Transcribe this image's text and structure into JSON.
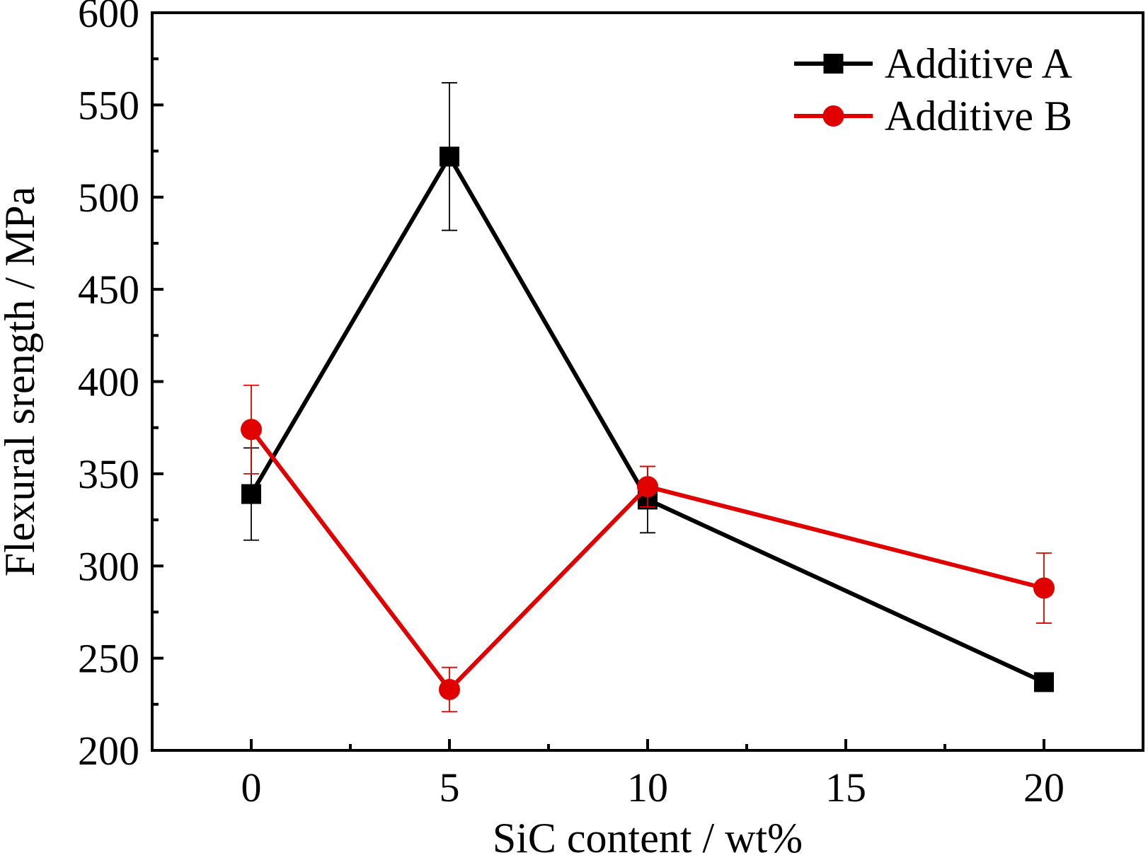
{
  "chart_data": {
    "type": "line",
    "title": "",
    "xlabel": "SiC content / wt%",
    "ylabel": "Flexural srength / MPa",
    "xlim": [
      -2.5,
      22.5
    ],
    "ylim": [
      200,
      600
    ],
    "xticks": [
      0,
      5,
      10,
      15,
      20
    ],
    "yticks": [
      200,
      250,
      300,
      350,
      400,
      450,
      500,
      550,
      600
    ],
    "grid": false,
    "legend": "top-right",
    "series": [
      {
        "name": "Additive A",
        "color": "#000000",
        "marker": "square",
        "x": [
          0,
          5,
          10,
          20
        ],
        "y": [
          339,
          522,
          336,
          237
        ],
        "err": [
          25,
          40,
          18,
          2
        ]
      },
      {
        "name": "Additive B",
        "color": "#e00000",
        "marker": "circle",
        "x": [
          0,
          5,
          10,
          20
        ],
        "y": [
          374,
          233,
          343,
          288
        ],
        "err": [
          24,
          12,
          11,
          19
        ]
      }
    ]
  }
}
